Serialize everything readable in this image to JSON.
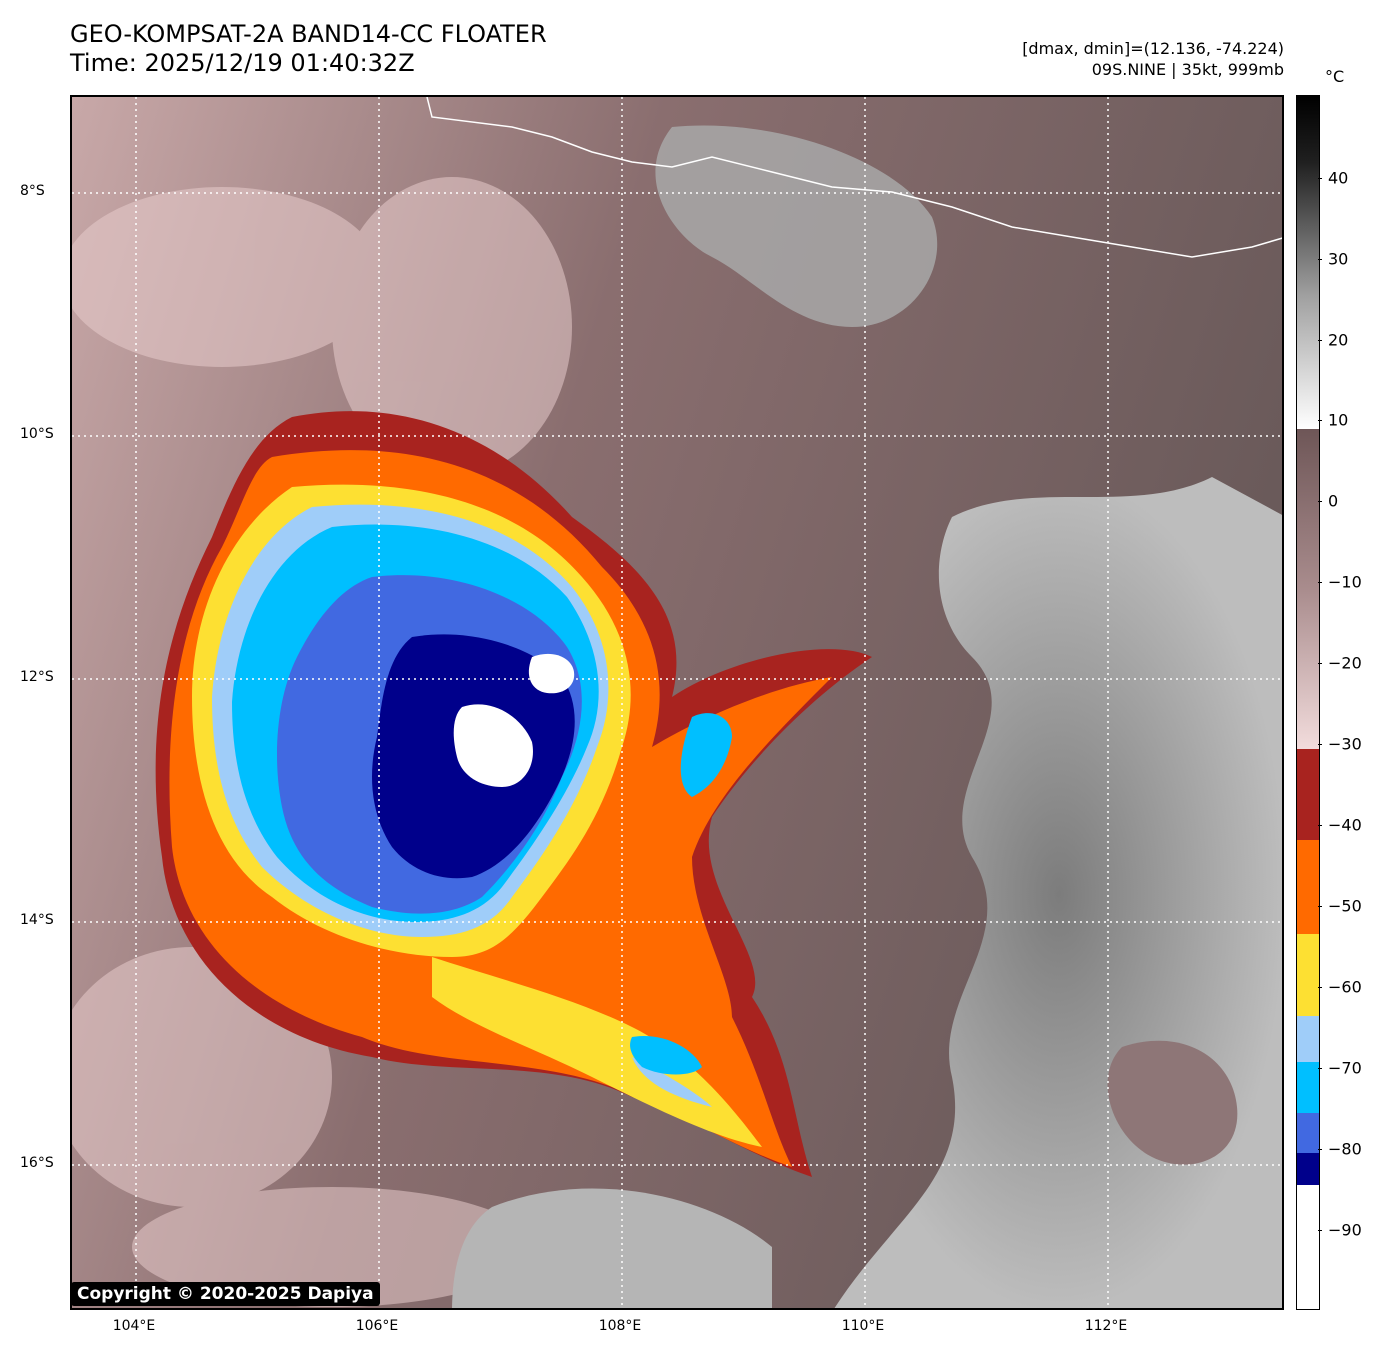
{
  "title": {
    "line1": "GEO-KOMPSAT-2A BAND14-CC FLOATER",
    "line2": "Time: 2025/12/19 01:40:32Z"
  },
  "meta": {
    "range": "[dmax, dmin]=(12.136, -74.224)",
    "storm": "09S.NINE | 35kt, 999mb"
  },
  "colorbar": {
    "unit": "°C",
    "ticks": [
      "40",
      "30",
      "20",
      "10",
      "0",
      "−10",
      "−20",
      "−30",
      "−40",
      "−50",
      "−60",
      "−70",
      "−80",
      "−90"
    ]
  },
  "axes": {
    "lat_labels": [
      "8°S",
      "10°S",
      "12°S",
      "14°S",
      "16°S"
    ],
    "lon_labels": [
      "104°E",
      "106°E",
      "108°E",
      "110°E",
      "112°E"
    ]
  },
  "palette": {
    "minus30_40": "#a8231f",
    "minus40_50": "#ff6a00",
    "minus50_60": "#fde032",
    "minus60_65": "#9fcdf9",
    "minus65_70": "#00bfff",
    "minus70_75": "#4169e1",
    "minus75_80": "#00008b",
    "below_minus80": "#ffffff"
  },
  "copyright": "Copyright © 2020-2025 Dapiya"
}
